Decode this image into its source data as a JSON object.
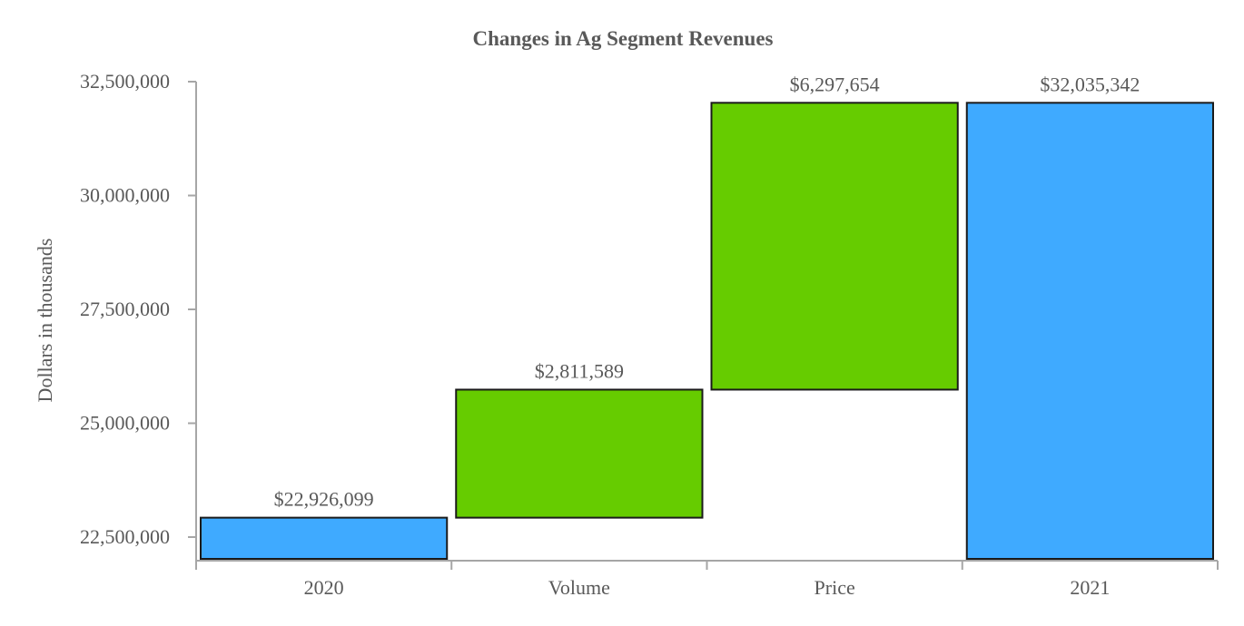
{
  "chart_data": {
    "type": "waterfall",
    "title": "Changes in Ag Segment Revenues",
    "xlabel": "",
    "ylabel": "Dollars in thousands",
    "ylim": [
      22000000,
      32500000
    ],
    "yticks": [
      22500000,
      25000000,
      27500000,
      30000000,
      32500000
    ],
    "ytick_labels": [
      "22,500,000",
      "25,000,000",
      "27,500,000",
      "30,000,000",
      "32,500,000"
    ],
    "grid": false,
    "categories": [
      "2020",
      "Volume",
      "Price",
      "2021"
    ],
    "bars": [
      {
        "category": "2020",
        "kind": "total",
        "value": 22926099,
        "label": "$22,926,099"
      },
      {
        "category": "Volume",
        "kind": "increase",
        "value": 2811589,
        "label": "$2,811,589"
      },
      {
        "category": "Price",
        "kind": "increase",
        "value": 6297654,
        "label": "$6,297,654"
      },
      {
        "category": "2021",
        "kind": "total",
        "value": 32035342,
        "label": "$32,035,342"
      }
    ],
    "colors": {
      "total": "#3faaff",
      "increase": "#66cc00",
      "outline": "#1a1a1a",
      "axis": "#a6a6a6",
      "text": "#595959"
    }
  }
}
